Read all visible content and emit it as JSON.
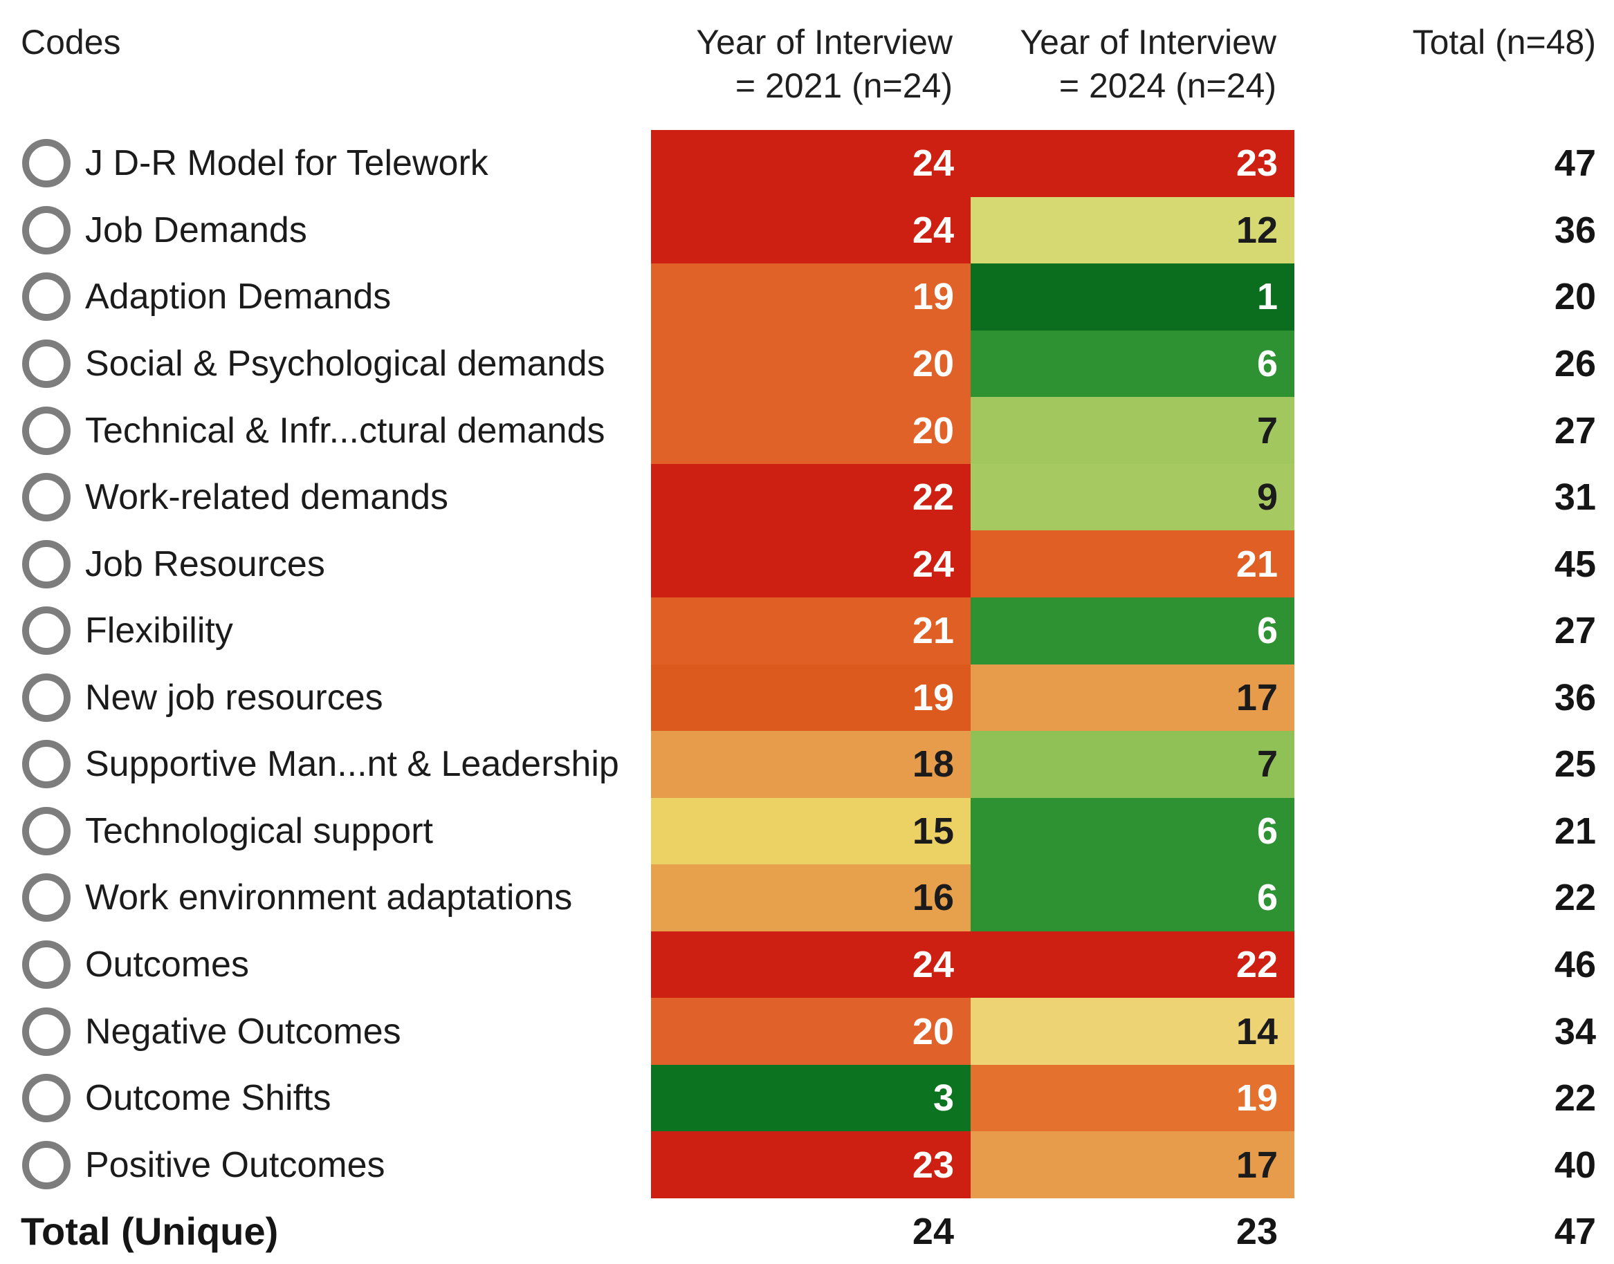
{
  "header": {
    "codes_label": "Codes",
    "col2021_line1": "Year of Interview",
    "col2021_line2": "= 2021 (n=24)",
    "col2024_line1": "Year of Interview",
    "col2024_line2": "= 2024 (n=24)",
    "total_label": "Total (n=48)"
  },
  "rows": [
    {
      "label": "J D-R Model for Telework",
      "y2021": {
        "value": "24",
        "bg": "#cd2012",
        "fg": "#ffffff"
      },
      "y2024": {
        "value": "23",
        "bg": "#cd2012",
        "fg": "#ffffff"
      },
      "total": "47"
    },
    {
      "label": "Job Demands",
      "y2021": {
        "value": "24",
        "bg": "#cd2012",
        "fg": "#ffffff"
      },
      "y2024": {
        "value": "12",
        "bg": "#d6d971",
        "fg": "#1b1b1b"
      },
      "total": "36"
    },
    {
      "label": "Adaption Demands",
      "y2021": {
        "value": "19",
        "bg": "#e06228",
        "fg": "#ffffff"
      },
      "y2024": {
        "value": "1",
        "bg": "#0a6e1e",
        "fg": "#ffffff"
      },
      "total": "20"
    },
    {
      "label": "Social & Psychological demands",
      "y2021": {
        "value": "20",
        "bg": "#e06228",
        "fg": "#ffffff"
      },
      "y2024": {
        "value": "6",
        "bg": "#2e9232",
        "fg": "#ffffff"
      },
      "total": "26"
    },
    {
      "label": "Technical & Infr...ctural demands",
      "y2021": {
        "value": "20",
        "bg": "#e06228",
        "fg": "#ffffff"
      },
      "y2024": {
        "value": "7",
        "bg": "#a2c75e",
        "fg": "#1b1b1b"
      },
      "total": "27"
    },
    {
      "label": "Work-related demands",
      "y2021": {
        "value": "22",
        "bg": "#cd2012",
        "fg": "#ffffff"
      },
      "y2024": {
        "value": "9",
        "bg": "#a6c961",
        "fg": "#1b1b1b"
      },
      "total": "31"
    },
    {
      "label": "Job Resources",
      "y2021": {
        "value": "24",
        "bg": "#cd2012",
        "fg": "#ffffff"
      },
      "y2024": {
        "value": "21",
        "bg": "#df5f24",
        "fg": "#ffffff"
      },
      "total": "45"
    },
    {
      "label": "Flexibility",
      "y2021": {
        "value": "21",
        "bg": "#df5f24",
        "fg": "#ffffff"
      },
      "y2024": {
        "value": "6",
        "bg": "#2e9232",
        "fg": "#ffffff"
      },
      "total": "27"
    },
    {
      "label": "New job resources",
      "y2021": {
        "value": "19",
        "bg": "#dd5a1e",
        "fg": "#ffffff"
      },
      "y2024": {
        "value": "17",
        "bg": "#e69c4a",
        "fg": "#1b1b1b"
      },
      "total": "36"
    },
    {
      "label": "Supportive Man...nt & Leadership",
      "y2021": {
        "value": "18",
        "bg": "#e69c4a",
        "fg": "#1b1b1b"
      },
      "y2024": {
        "value": "7",
        "bg": "#8fc157",
        "fg": "#1b1b1b"
      },
      "total": "25"
    },
    {
      "label": "Technological support",
      "y2021": {
        "value": "15",
        "bg": "#ecd165",
        "fg": "#1b1b1b"
      },
      "y2024": {
        "value": "6",
        "bg": "#2e9232",
        "fg": "#ffffff"
      },
      "total": "21"
    },
    {
      "label": "Work environment adaptations",
      "y2021": {
        "value": "16",
        "bg": "#e7a04c",
        "fg": "#1b1b1b"
      },
      "y2024": {
        "value": "6",
        "bg": "#2e9232",
        "fg": "#ffffff"
      },
      "total": "22"
    },
    {
      "label": "Outcomes",
      "y2021": {
        "value": "24",
        "bg": "#cd2012",
        "fg": "#ffffff"
      },
      "y2024": {
        "value": "22",
        "bg": "#cd2012",
        "fg": "#ffffff"
      },
      "total": "46"
    },
    {
      "label": "Negative Outcomes",
      "y2021": {
        "value": "20",
        "bg": "#e0622a",
        "fg": "#ffffff"
      },
      "y2024": {
        "value": "14",
        "bg": "#eed374",
        "fg": "#1b1b1b"
      },
      "total": "34"
    },
    {
      "label": "Outcome Shifts",
      "y2021": {
        "value": "3",
        "bg": "#0c7420",
        "fg": "#ffffff"
      },
      "y2024": {
        "value": "19",
        "bg": "#e4712e",
        "fg": "#ffffff"
      },
      "total": "22"
    },
    {
      "label": "Positive Outcomes",
      "y2021": {
        "value": "23",
        "bg": "#cd2012",
        "fg": "#ffffff"
      },
      "y2024": {
        "value": "17",
        "bg": "#e69c4a",
        "fg": "#1b1b1b"
      },
      "total": "40"
    }
  ],
  "footer": {
    "label": "Total (Unique)",
    "y2021": "24",
    "y2024": "23",
    "total": "47"
  },
  "colors": {
    "circle_stroke": "#7d7d7d",
    "text": "#1b1b1b",
    "scale_low_green": "#0a6e1e",
    "scale_mid_yellow": "#ecd165",
    "scale_high_red": "#cd2012"
  },
  "chart_data": {
    "type": "heatmap",
    "title": "",
    "columns": [
      "Year of Interview = 2021 (n=24)",
      "Year of Interview = 2024 (n=24)",
      "Total (n=48)"
    ],
    "categories": [
      "J D-R Model for Telework",
      "Job Demands",
      "Adaption Demands",
      "Social & Psychological demands",
      "Technical & Infr...ctural demands",
      "Work-related demands",
      "Job Resources",
      "Flexibility",
      "New job resources",
      "Supportive Man...nt & Leadership",
      "Technological support",
      "Work environment adaptations",
      "Outcomes",
      "Negative Outcomes",
      "Outcome Shifts",
      "Positive Outcomes"
    ],
    "series": [
      {
        "name": "Year of Interview = 2021 (n=24)",
        "values": [
          24,
          24,
          19,
          20,
          20,
          22,
          24,
          21,
          19,
          18,
          15,
          16,
          24,
          20,
          3,
          23
        ]
      },
      {
        "name": "Year of Interview = 2024 (n=24)",
        "values": [
          23,
          12,
          1,
          6,
          7,
          9,
          21,
          6,
          17,
          7,
          6,
          6,
          22,
          14,
          19,
          17
        ]
      }
    ],
    "row_totals": [
      47,
      36,
      20,
      26,
      27,
      31,
      45,
      27,
      36,
      25,
      21,
      22,
      46,
      34,
      22,
      40
    ],
    "totals_unique": {
      "y2021": 24,
      "y2024": 23,
      "total": 47
    },
    "color_scale": "diverging green (low) -> yellow (mid ~12) -> orange -> red (high), domain 1-24",
    "legend_position": "none",
    "grid": false
  }
}
